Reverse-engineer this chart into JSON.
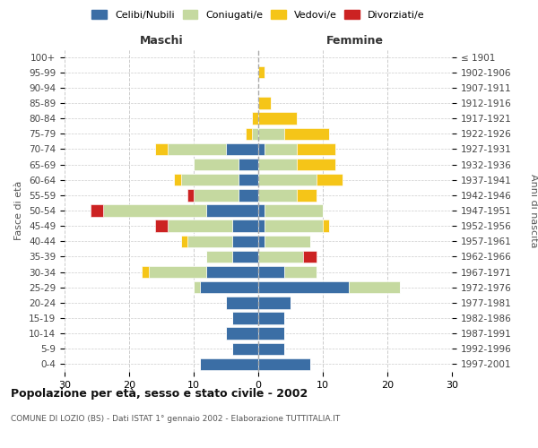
{
  "age_groups": [
    "0-4",
    "5-9",
    "10-14",
    "15-19",
    "20-24",
    "25-29",
    "30-34",
    "35-39",
    "40-44",
    "45-49",
    "50-54",
    "55-59",
    "60-64",
    "65-69",
    "70-74",
    "75-79",
    "80-84",
    "85-89",
    "90-94",
    "95-99",
    "100+"
  ],
  "birth_years": [
    "1997-2001",
    "1992-1996",
    "1987-1991",
    "1982-1986",
    "1977-1981",
    "1972-1976",
    "1967-1971",
    "1962-1966",
    "1957-1961",
    "1952-1956",
    "1947-1951",
    "1942-1946",
    "1937-1941",
    "1932-1936",
    "1927-1931",
    "1922-1926",
    "1917-1921",
    "1912-1916",
    "1907-1911",
    "1902-1906",
    "≤ 1901"
  ],
  "male": {
    "celibi": [
      9,
      4,
      5,
      4,
      5,
      9,
      8,
      4,
      4,
      4,
      8,
      3,
      3,
      3,
      5,
      0,
      0,
      0,
      0,
      0,
      0
    ],
    "coniugati": [
      0,
      0,
      0,
      0,
      0,
      1,
      9,
      4,
      7,
      10,
      16,
      7,
      9,
      7,
      9,
      1,
      0,
      0,
      0,
      0,
      0
    ],
    "vedovi": [
      0,
      0,
      0,
      0,
      0,
      0,
      1,
      0,
      1,
      0,
      0,
      0,
      1,
      0,
      2,
      1,
      1,
      0,
      0,
      0,
      0
    ],
    "divorziati": [
      0,
      0,
      0,
      0,
      0,
      0,
      0,
      0,
      0,
      2,
      2,
      1,
      0,
      0,
      0,
      0,
      0,
      0,
      0,
      0,
      0
    ]
  },
  "female": {
    "nubili": [
      8,
      4,
      4,
      4,
      5,
      14,
      4,
      0,
      1,
      1,
      1,
      0,
      0,
      0,
      1,
      0,
      0,
      0,
      0,
      0,
      0
    ],
    "coniugate": [
      0,
      0,
      0,
      0,
      0,
      8,
      5,
      7,
      7,
      9,
      9,
      6,
      9,
      6,
      5,
      4,
      0,
      0,
      0,
      0,
      0
    ],
    "vedove": [
      0,
      0,
      0,
      0,
      0,
      0,
      0,
      0,
      0,
      1,
      0,
      3,
      4,
      6,
      6,
      7,
      6,
      2,
      0,
      1,
      0
    ],
    "divorziate": [
      0,
      0,
      0,
      0,
      0,
      0,
      0,
      2,
      0,
      0,
      0,
      0,
      0,
      0,
      0,
      0,
      0,
      0,
      0,
      0,
      0
    ]
  },
  "colors": {
    "celibi_nubili": "#3b6ea5",
    "coniugati": "#c5d9a0",
    "vedovi": "#f5c518",
    "divorziati": "#cc2222"
  },
  "xlim": 30,
  "title": "Popolazione per età, sesso e stato civile - 2002",
  "subtitle": "COMUNE DI LOZIO (BS) - Dati ISTAT 1° gennaio 2002 - Elaborazione TUTTITALIA.IT",
  "ylabel_left": "Fasce di età",
  "ylabel_right": "Anni di nascita",
  "xlabel_left": "Maschi",
  "xlabel_right": "Femmine",
  "legend_labels": [
    "Celibi/Nubili",
    "Coniugati/e",
    "Vedovi/e",
    "Divorziati/e"
  ],
  "background_color": "#ffffff",
  "grid_color": "#cccccc"
}
